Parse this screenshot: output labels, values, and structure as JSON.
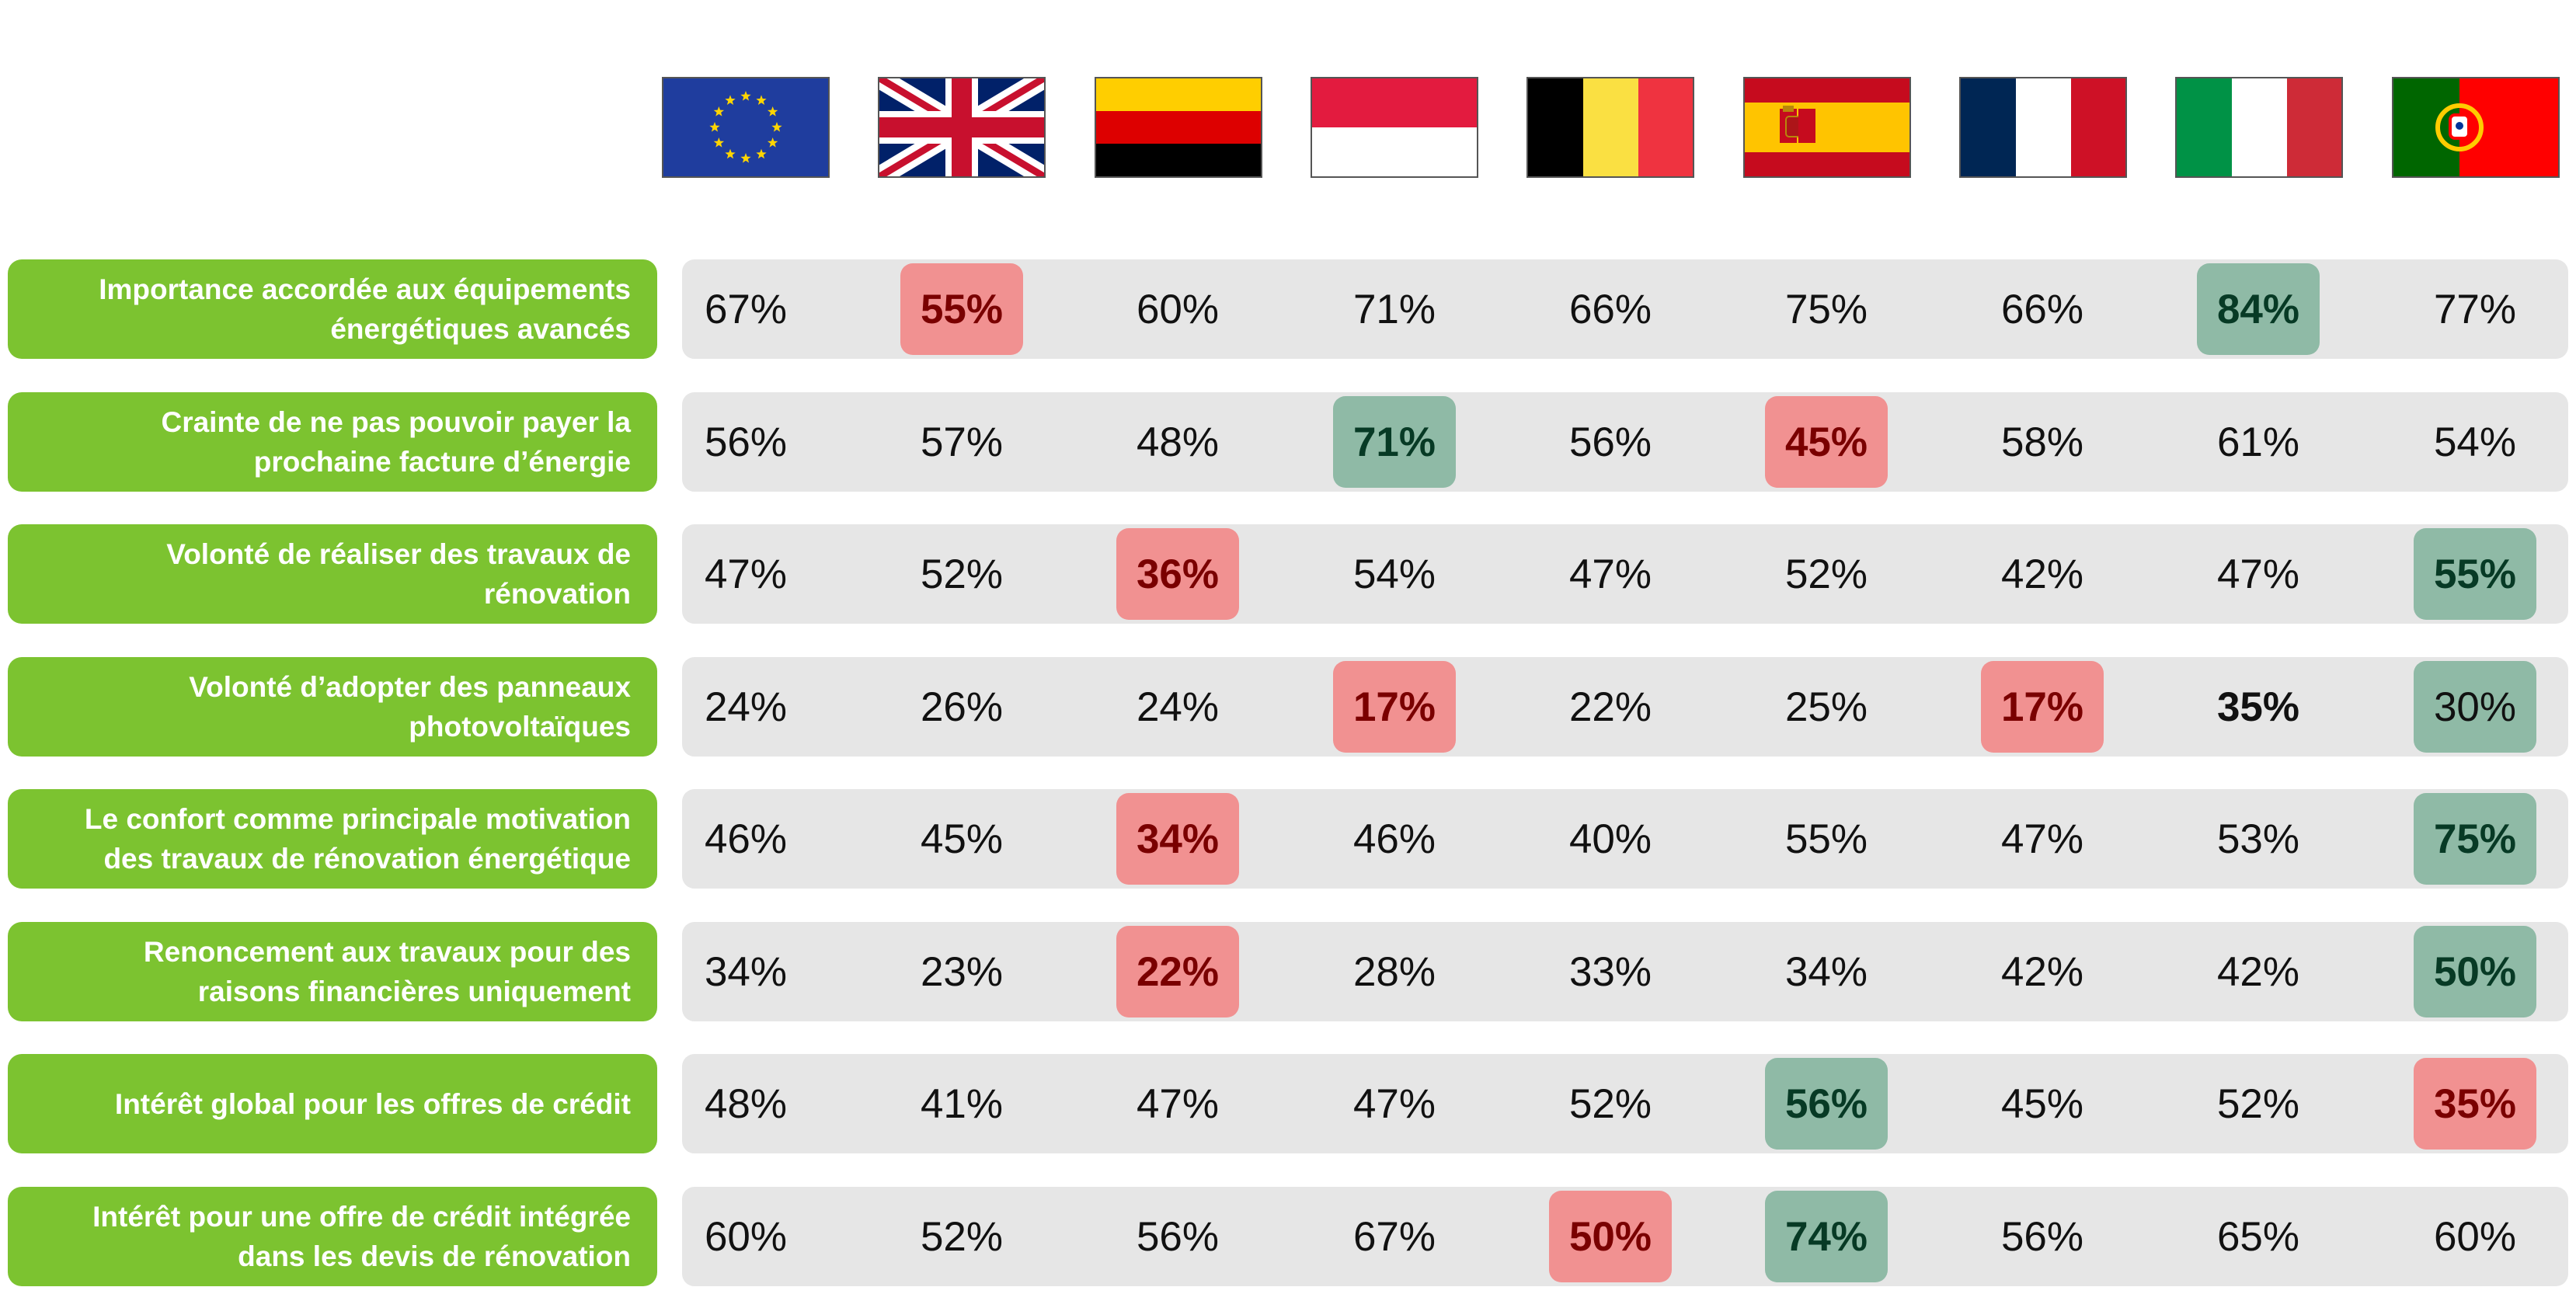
{
  "chart_data": {
    "type": "table",
    "countries": [
      {
        "flag": "eu-flag",
        "colors": [
          "#1f3d9e",
          "#ffd500"
        ]
      },
      {
        "flag": "uk-flag",
        "colors": [
          "#012169",
          "#ffffff",
          "#c8102e"
        ]
      },
      {
        "flag": "germany-flag",
        "colors": [
          "#000000",
          "#dd0000",
          "#ffce00"
        ]
      },
      {
        "flag": "monaco-flag",
        "colors": [
          "#e31b3f",
          "#ffffff"
        ]
      },
      {
        "flag": "belgium-flag",
        "colors": [
          "#000000",
          "#fae042",
          "#ef3340"
        ]
      },
      {
        "flag": "spain-flag",
        "colors": [
          "#c60b1e",
          "#ffc400"
        ]
      },
      {
        "flag": "france-flag",
        "colors": [
          "#002654",
          "#ffffff",
          "#ce1126"
        ]
      },
      {
        "flag": "italy-flag",
        "colors": [
          "#009246",
          "#ffffff",
          "#ce2b37"
        ]
      },
      {
        "flag": "portugal-flag",
        "colors": [
          "#006600",
          "#ff0000",
          "#ffcc00"
        ]
      }
    ],
    "rows": [
      {
        "label": "Importance accordée aux équipements\nénergétiques avancés",
        "values": [
          "67%",
          "55%",
          "60%",
          "71%",
          "66%",
          "75%",
          "66%",
          "84%",
          "77%"
        ],
        "highlight": [
          "",
          "low",
          "",
          "",
          "",
          "",
          "",
          "high",
          ""
        ]
      },
      {
        "label": "Crainte de ne pas pouvoir payer la\nprochaine facture d’énergie",
        "values": [
          "56%",
          "57%",
          "48%",
          "71%",
          "56%",
          "45%",
          "58%",
          "61%",
          "54%"
        ],
        "highlight": [
          "",
          "",
          "",
          "high",
          "",
          "low",
          "",
          "",
          ""
        ]
      },
      {
        "label": "Volonté de réaliser des travaux de\nrénovation",
        "values": [
          "47%",
          "52%",
          "36%",
          "54%",
          "47%",
          "52%",
          "42%",
          "47%",
          "55%"
        ],
        "highlight": [
          "",
          "",
          "low",
          "",
          "",
          "",
          "",
          "",
          "high"
        ]
      },
      {
        "label": "Volonté d’adopter des panneaux\nphotovoltaïques",
        "values": [
          "24%",
          "26%",
          "24%",
          "17%",
          "22%",
          "25%",
          "17%",
          "35%",
          "30%"
        ],
        "highlight": [
          "",
          "",
          "",
          "low",
          "",
          "",
          "low",
          "bold",
          "high-light"
        ]
      },
      {
        "label": "Le confort comme principale motivation\ndes travaux de rénovation énergétique",
        "values": [
          "46%",
          "45%",
          "34%",
          "46%",
          "40%",
          "55%",
          "47%",
          "53%",
          "75%"
        ],
        "highlight": [
          "",
          "",
          "low",
          "",
          "",
          "",
          "",
          "",
          "high"
        ]
      },
      {
        "label": "Renoncement aux travaux pour des\nraisons financières uniquement",
        "values": [
          "34%",
          "23%",
          "22%",
          "28%",
          "33%",
          "34%",
          "42%",
          "42%",
          "50%"
        ],
        "highlight": [
          "",
          "",
          "low",
          "",
          "",
          "",
          "",
          "",
          "high"
        ]
      },
      {
        "label": "Intérêt global pour les offres de crédit",
        "values": [
          "48%",
          "41%",
          "47%",
          "47%",
          "52%",
          "56%",
          "45%",
          "52%",
          "35%"
        ],
        "highlight": [
          "",
          "",
          "",
          "",
          "",
          "high",
          "",
          "",
          "low"
        ]
      },
      {
        "label": "Intérêt pour une offre de crédit intégrée\ndans les devis de rénovation",
        "values": [
          "60%",
          "52%",
          "56%",
          "67%",
          "50%",
          "74%",
          "56%",
          "65%",
          "60%"
        ],
        "highlight": [
          "",
          "",
          "",
          "",
          "low",
          "high",
          "",
          "",
          ""
        ]
      }
    ],
    "highlight_colors": {
      "low": "#f19191",
      "high": "#8fbaa6",
      "row_bg": "#e6e6e6",
      "label_bg": "#7cc330"
    }
  }
}
